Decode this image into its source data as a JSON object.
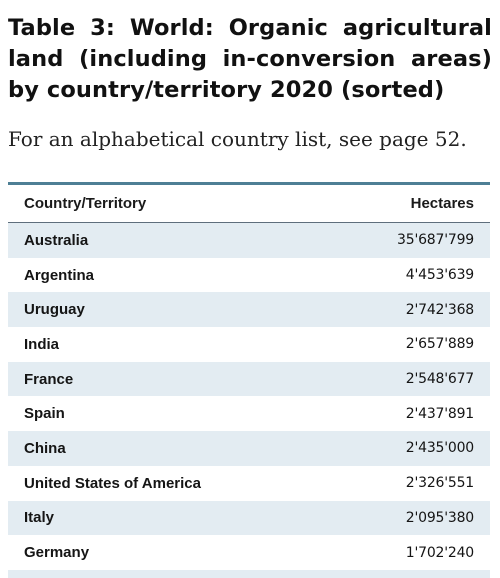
{
  "title": "Table 3: World: Organic agricultural land (including in-conversion areas) by country/territory 2020 (sorted)",
  "subtitle": "For an alphabetical country list, see page  52.",
  "table": {
    "headers": {
      "country": "Country/Territory",
      "hectares": "Hectares"
    },
    "rows": [
      {
        "country": "Australia",
        "hectares": "35'687'799"
      },
      {
        "country": "Argentina",
        "hectares": "4'453'639"
      },
      {
        "country": "Uruguay",
        "hectares": "2'742'368"
      },
      {
        "country": "India",
        "hectares": "2'657'889"
      },
      {
        "country": "France",
        "hectares": "2'548'677"
      },
      {
        "country": "Spain",
        "hectares": "2'437'891"
      },
      {
        "country": "China",
        "hectares": "2'435'000"
      },
      {
        "country": "United States of America",
        "hectares": "2'326'551"
      },
      {
        "country": "Italy",
        "hectares": "2'095'380"
      },
      {
        "country": "Germany",
        "hectares": "1'702'240"
      }
    ]
  },
  "colors": {
    "accent_rule": "#4e7f95",
    "row_shade": "#e3ecf2"
  }
}
